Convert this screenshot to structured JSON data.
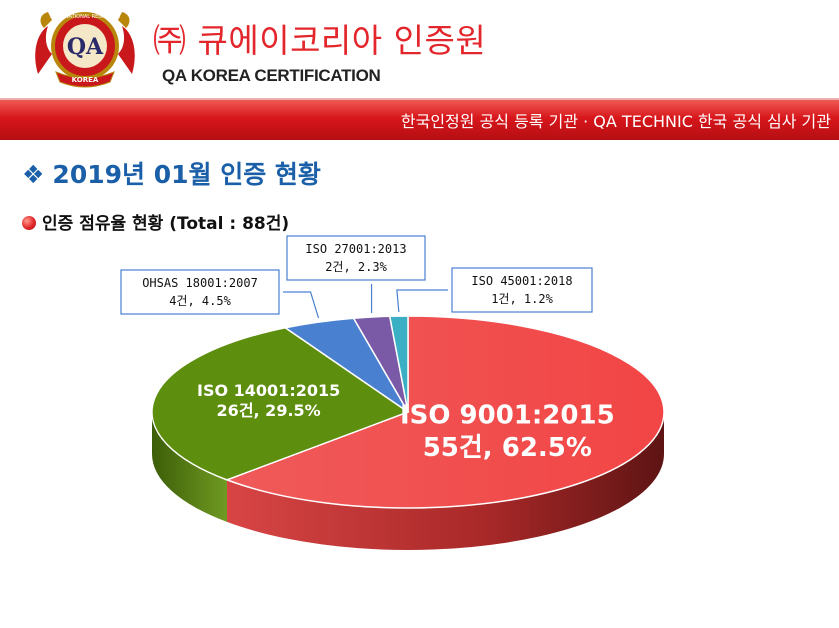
{
  "header": {
    "logo": {
      "text_top": "INTERNATIONAL REGISTRAR",
      "text_center": "QA",
      "text_bottom": "KOREA",
      "icon": "lion-crest-icon"
    },
    "company_name_ko": "㈜ 큐에이코리아 인증원",
    "company_name_en": "QA KOREA CERTIFICATION"
  },
  "banner": {
    "text": "한국인정원 공식 등록 기관 · QA TECHNIC 한국 공식 심사 기관"
  },
  "section": {
    "symbol": "❖",
    "title": "2019년 01월 인증 현황"
  },
  "subsection": {
    "title": "인증 점유율 현황 (Total : 88건)"
  },
  "colors": {
    "brand_red": "#e3262b",
    "title_blue": "#1a5fa8"
  },
  "chart_data": {
    "type": "pie",
    "total": 88,
    "slices": [
      {
        "name": "ISO 9001:2015",
        "count_label": "55건, 62.5%",
        "count": 55,
        "percent": 62.5,
        "color": "#f24b4b"
      },
      {
        "name": "ISO 14001:2015",
        "count_label": "26건, 29.5%",
        "count": 26,
        "percent": 29.5,
        "color": "#5e8e0e"
      },
      {
        "name": "OHSAS 18001:2007",
        "count_label": "4건, 4.5%",
        "count": 4,
        "percent": 4.5,
        "color": "#4a80d0"
      },
      {
        "name": "ISO 27001:2013",
        "count_label": "2건, 2.3%",
        "count": 2,
        "percent": 2.3,
        "color": "#7a5aa6"
      },
      {
        "name": "ISO 45001:2018",
        "count_label": "1건, 1.2%",
        "count": 1,
        "percent": 1.2,
        "color": "#3bb0c4"
      }
    ]
  }
}
